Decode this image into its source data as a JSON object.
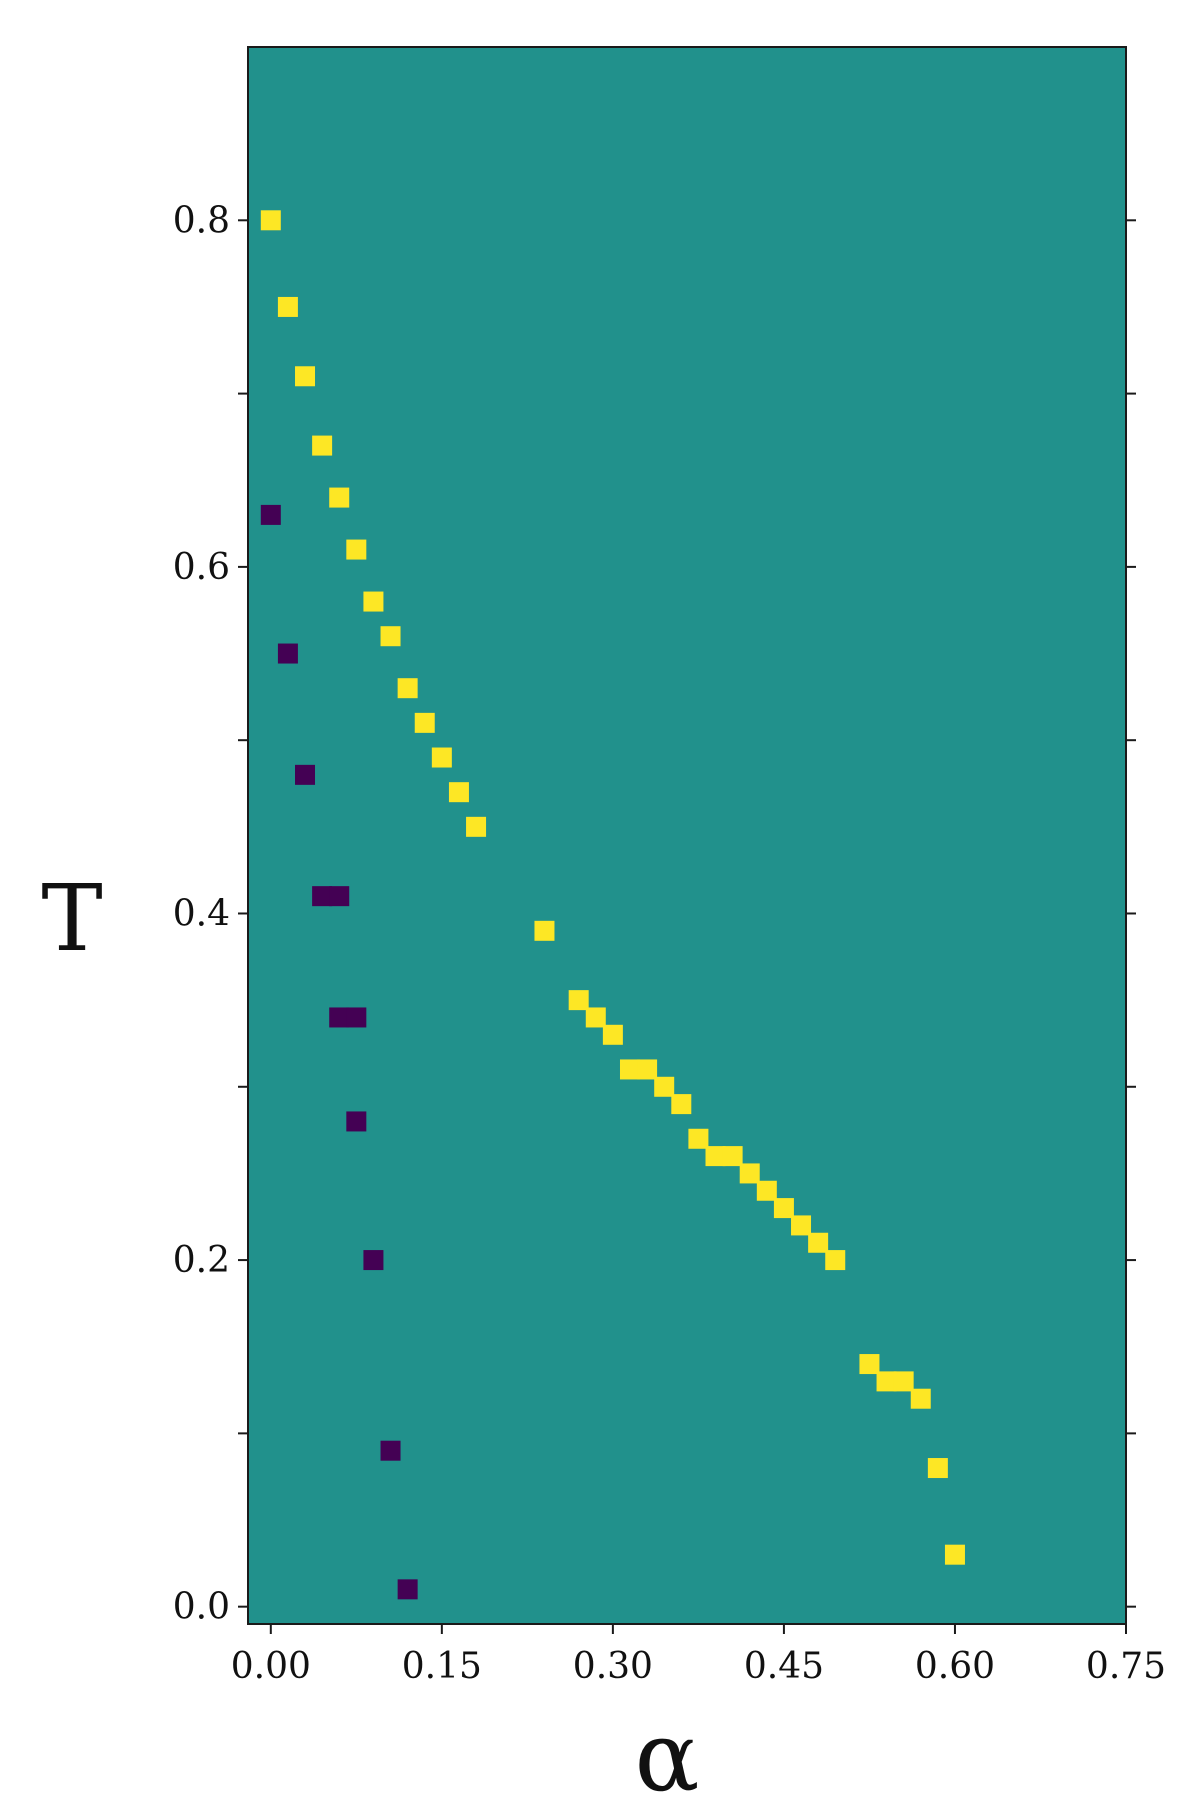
{
  "chart_data": {
    "type": "heatmap",
    "title": "",
    "xlabel": "α",
    "ylabel": "T",
    "xlim": [
      -0.02,
      0.75
    ],
    "ylim": [
      -0.01,
      0.9
    ],
    "grid": false,
    "legend": "none",
    "x_ticks": [
      0.0,
      0.15,
      0.3,
      0.45,
      0.6,
      0.75
    ],
    "x_tick_labels": [
      "0.00",
      "0.15",
      "0.30",
      "0.45",
      "0.60",
      "0.75"
    ],
    "y_ticks": [
      0.0,
      0.2,
      0.4,
      0.6,
      0.8
    ],
    "y_tick_labels": [
      "0.0",
      "0.2",
      "0.4",
      "0.6",
      "0.8"
    ],
    "y_minor_ticks": [
      0.1,
      0.3,
      0.5,
      0.7
    ],
    "colors": {
      "background": "#21918c",
      "upper": "#fde725",
      "lower": "#440154"
    },
    "series": [
      {
        "color": "#fde725",
        "points": [
          {
            "x": 0.0,
            "y": 0.8
          },
          {
            "x": 0.015,
            "y": 0.75
          },
          {
            "x": 0.03,
            "y": 0.71
          },
          {
            "x": 0.045,
            "y": 0.67
          },
          {
            "x": 0.06,
            "y": 0.64
          },
          {
            "x": 0.075,
            "y": 0.61
          },
          {
            "x": 0.09,
            "y": 0.58
          },
          {
            "x": 0.105,
            "y": 0.56
          },
          {
            "x": 0.12,
            "y": 0.53
          },
          {
            "x": 0.135,
            "y": 0.51
          },
          {
            "x": 0.15,
            "y": 0.49
          },
          {
            "x": 0.165,
            "y": 0.47
          },
          {
            "x": 0.18,
            "y": 0.45
          },
          {
            "x": 0.24,
            "y": 0.39
          },
          {
            "x": 0.27,
            "y": 0.35
          },
          {
            "x": 0.285,
            "y": 0.34
          },
          {
            "x": 0.3,
            "y": 0.33
          },
          {
            "x": 0.315,
            "y": 0.31
          },
          {
            "x": 0.33,
            "y": 0.31
          },
          {
            "x": 0.345,
            "y": 0.3
          },
          {
            "x": 0.36,
            "y": 0.29
          },
          {
            "x": 0.375,
            "y": 0.27
          },
          {
            "x": 0.39,
            "y": 0.26
          },
          {
            "x": 0.405,
            "y": 0.26
          },
          {
            "x": 0.42,
            "y": 0.25
          },
          {
            "x": 0.435,
            "y": 0.24
          },
          {
            "x": 0.45,
            "y": 0.23
          },
          {
            "x": 0.465,
            "y": 0.22
          },
          {
            "x": 0.48,
            "y": 0.21
          },
          {
            "x": 0.495,
            "y": 0.2
          },
          {
            "x": 0.525,
            "y": 0.14
          },
          {
            "x": 0.54,
            "y": 0.13
          },
          {
            "x": 0.555,
            "y": 0.13
          },
          {
            "x": 0.57,
            "y": 0.12
          },
          {
            "x": 0.585,
            "y": 0.08
          },
          {
            "x": 0.6,
            "y": 0.03
          }
        ]
      },
      {
        "color": "#440154",
        "points": [
          {
            "x": 0.0,
            "y": 0.63
          },
          {
            "x": 0.015,
            "y": 0.55
          },
          {
            "x": 0.03,
            "y": 0.48
          },
          {
            "x": 0.045,
            "y": 0.41
          },
          {
            "x": 0.06,
            "y": 0.41
          },
          {
            "x": 0.06,
            "y": 0.34
          },
          {
            "x": 0.075,
            "y": 0.34
          },
          {
            "x": 0.075,
            "y": 0.28
          },
          {
            "x": 0.09,
            "y": 0.2
          },
          {
            "x": 0.105,
            "y": 0.09
          },
          {
            "x": 0.12,
            "y": 0.01
          }
        ]
      }
    ]
  }
}
